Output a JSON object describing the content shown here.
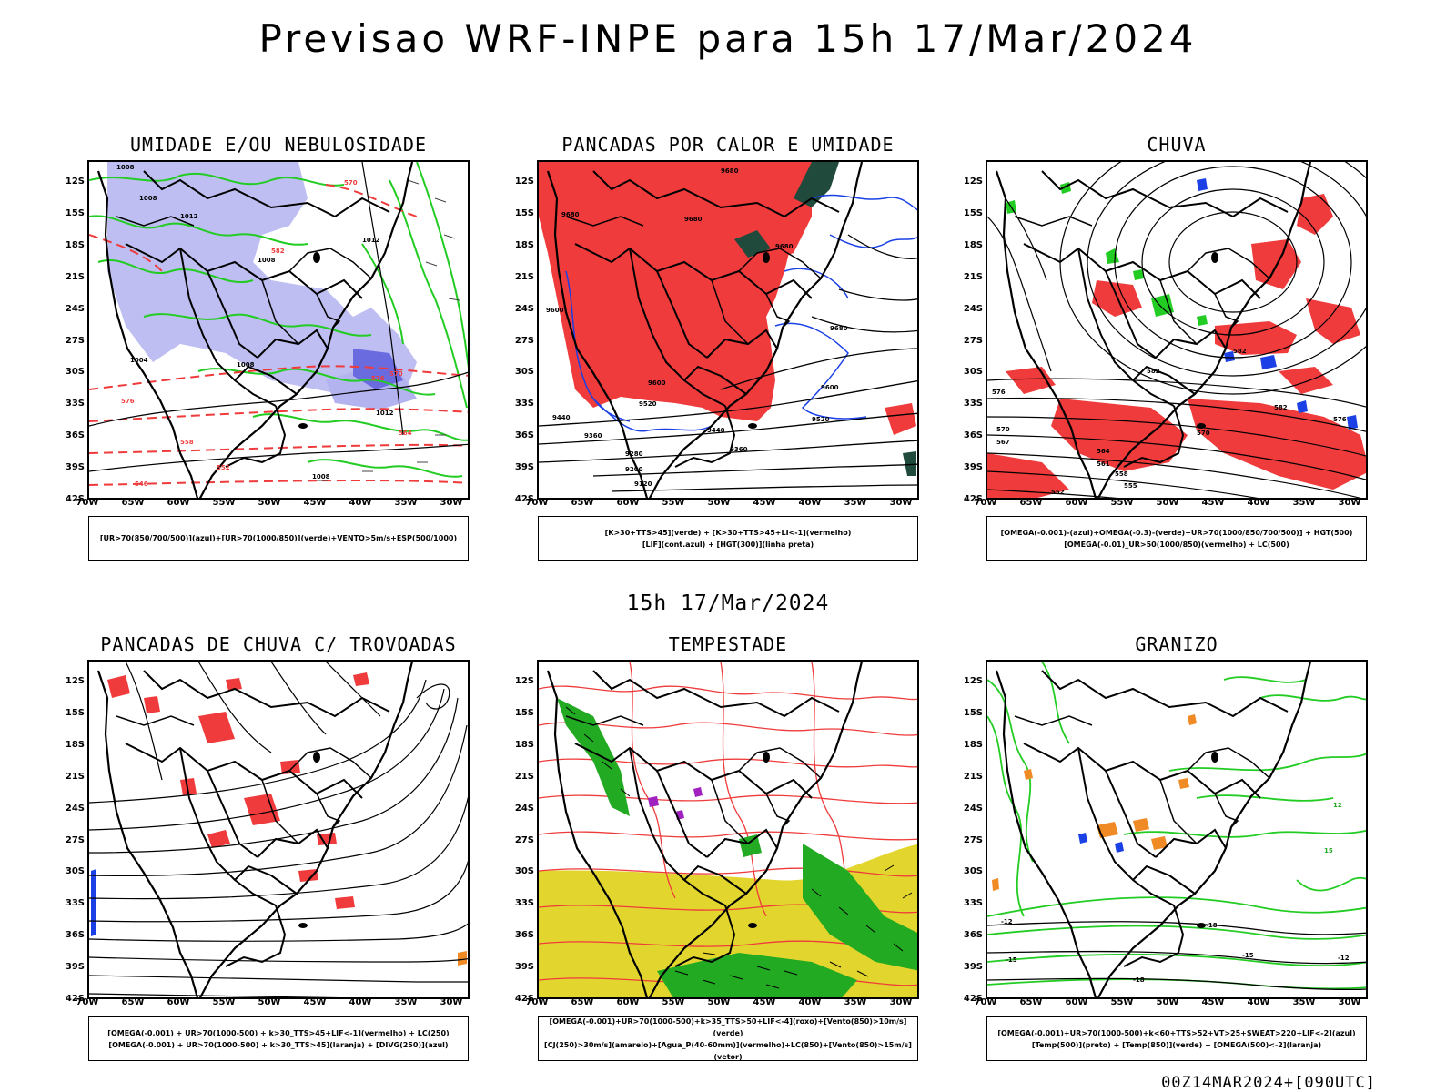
{
  "header": {
    "title": "Previsao WRF-INPE  para 15h 17/Mar/2024"
  },
  "mid_date": "15h 17/Mar/2024",
  "run_label": "00Z14MAR2024+[090UTC]",
  "axes": {
    "lat_labels": [
      "12S",
      "15S",
      "18S",
      "21S",
      "24S",
      "27S",
      "30S",
      "33S",
      "36S",
      "39S",
      "42S"
    ],
    "lon_labels": [
      "70W",
      "65W",
      "60W",
      "55W",
      "50W",
      "45W",
      "40W",
      "35W",
      "30W"
    ]
  },
  "panels": [
    {
      "title": "UMIDADE E/OU NEBULOSIDADE",
      "legend": [
        "[UR>70(850/700/500)](azul)+[UR>70(1000/850)](verde)+VENTO>5m/s+ESP(500/1000)"
      ]
    },
    {
      "title": "PANCADAS POR CALOR E UMIDADE",
      "legend": [
        "[K>30+TTS>45](verde) + [K>30+TTS>45+LI<-1](vermelho)",
        "[LIF](cont.azul) + [HGT(300)](linha preta)"
      ]
    },
    {
      "title": "CHUVA",
      "legend": [
        "[OMEGA(-0.001)-(azul)+OMEGA(-0.3)-(verde)+UR>70(1000/850/700/500)] + HGT(500)",
        "[OMEGA(-0.01)_UR>50(1000/850)(vermelho) + LC(500)"
      ]
    },
    {
      "title": "PANCADAS DE CHUVA C/ TROVOADAS",
      "legend": [
        "[OMEGA(-0.001) + UR>70(1000-500) + k>30_TTS>45+LIF<-1](vermelho) + LC(250)",
        "[OMEGA(-0.001) + UR>70(1000-500) + k>30_TTS>45](laranja) + [DIVG(250)](azul)"
      ]
    },
    {
      "title": "TEMPESTADE",
      "legend": [
        "[OMEGA(-0.001)+UR>70(1000-500)+k>35_TTS>50+LIF<-4](roxo)+[Vento(850)>10m/s](verde)",
        "[CJ(250)>30m/s](amarelo)+[Agua_P(40-60mm)](vermelho)+LC(850)+[Vento(850)>15m/s](vetor)"
      ]
    },
    {
      "title": "GRANIZO",
      "legend": [
        "[OMEGA(-0.001)+UR>70(1000-500)+k<60+TTS>52+VT>25+SWEAT>220+LIF<-2](azul)",
        "[Temp(500)](preto) + [Temp(850)](verde) + [OMEGA(500)<-2](laranja)"
      ]
    }
  ],
  "contour_labels": {
    "p1": [
      "1008",
      "1008",
      "1012",
      "1008",
      "1012",
      "570",
      "576",
      "582",
      "1004",
      "1008",
      "1012",
      "576",
      "570",
      "564",
      "558",
      "552",
      "546",
      "1008"
    ],
    "p2": [
      "9680",
      "9680",
      "9680",
      "9680",
      "9680",
      "9600",
      "9600",
      "9520",
      "9440",
      "9360",
      "9280",
      "9200",
      "9120",
      "9600",
      "9520",
      "9440",
      "9360"
    ],
    "p3": [
      "582",
      "582",
      "576",
      "570",
      "567",
      "564",
      "561",
      "558",
      "555",
      "552",
      "582",
      "576",
      "570"
    ],
    "p6": [
      "-12",
      "-15",
      "-18",
      "-12",
      "-15",
      "-18",
      "12",
      "15"
    ]
  },
  "colors": {
    "mid_humidity_blue": "#b3b3f0",
    "low_humidity_green": "#22cc22",
    "convection_red": "#ef3b3b",
    "jet_yellow": "#e2d62e",
    "dark_green": "#1f4a3c",
    "orange": "#f08a24",
    "blue": "#1a40e6",
    "black": "#000000"
  }
}
